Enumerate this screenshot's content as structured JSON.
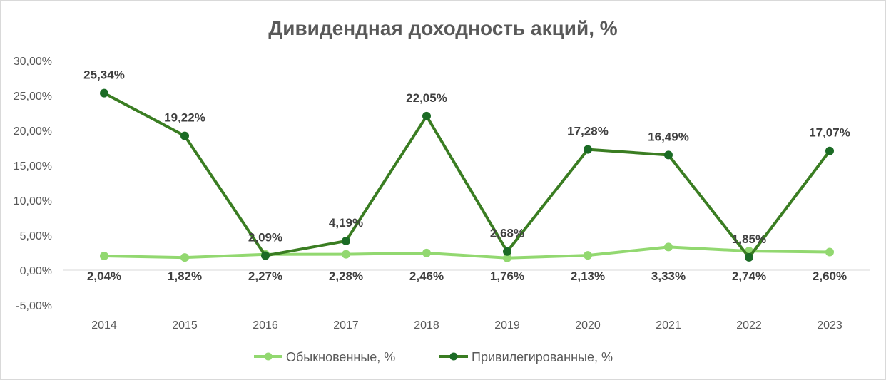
{
  "chart_data": {
    "type": "line",
    "title": "Дивидендная доходность акций, %",
    "xlabel": "",
    "ylabel": "",
    "categories": [
      "2014",
      "2015",
      "2016",
      "2017",
      "2018",
      "2019",
      "2020",
      "2021",
      "2022",
      "2023"
    ],
    "ylim": [
      -5,
      30
    ],
    "yticks": [
      -5,
      0,
      5,
      10,
      15,
      20,
      25,
      30
    ],
    "ytick_labels": [
      "-5,00%",
      "0,00%",
      "5,00%",
      "10,00%",
      "15,00%",
      "20,00%",
      "25,00%",
      "30,00%"
    ],
    "grid": false,
    "legend_position": "bottom",
    "series": [
      {
        "name": "Обыкновенные, %",
        "color": "#92d870",
        "marker_color": "#92d870",
        "values": [
          2.04,
          1.82,
          2.27,
          2.28,
          2.46,
          1.76,
          2.13,
          3.33,
          2.74,
          2.6
        ],
        "labels": [
          "2,04%",
          "1,82%",
          "2,27%",
          "2,28%",
          "2,46%",
          "1,76%",
          "2,13%",
          "3,33%",
          "2,74%",
          "2,60%"
        ],
        "label_pos": "below"
      },
      {
        "name": "Привилегированные, %",
        "color": "#3a7d22",
        "marker_color": "#1b6b25",
        "values": [
          25.34,
          19.22,
          2.09,
          4.19,
          22.05,
          2.68,
          17.28,
          16.49,
          1.85,
          17.07
        ],
        "labels": [
          "25,34%",
          "19,22%",
          "2,09%",
          "4,19%",
          "22,05%",
          "2,68%",
          "17,28%",
          "16,49%",
          "1,85%",
          "17,07%"
        ],
        "label_pos": "above"
      }
    ]
  }
}
